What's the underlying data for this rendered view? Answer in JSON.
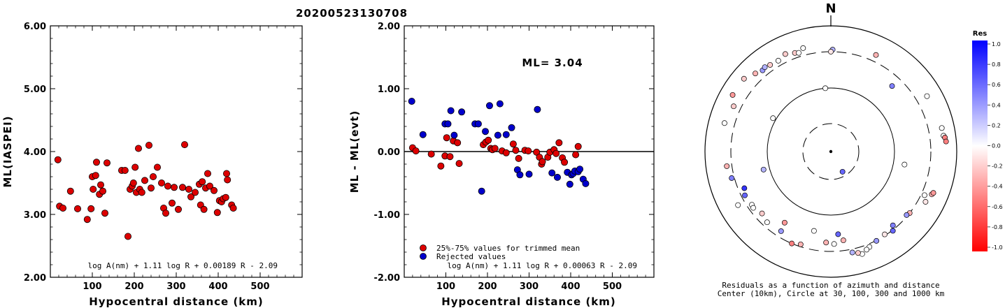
{
  "event_title": "20200523130708",
  "chart_data": [
    {
      "type": "scatter",
      "ylabel": "ML(IASPEI)",
      "xlabel": "Hypocentral distance (km)",
      "xlim": [
        0,
        600
      ],
      "ylim": [
        2.0,
        6.0
      ],
      "xticks": [
        "100",
        "200",
        "300",
        "400",
        "500"
      ],
      "yticks": [
        "2.00",
        "3.00",
        "4.00",
        "5.00",
        "6.00"
      ],
      "formula": "log A(nm) + 1.11 log R + 0.00189 R - 2.09",
      "color": "#dd0000",
      "points": [
        [
          18,
          3.87
        ],
        [
          22,
          3.13
        ],
        [
          30,
          3.1
        ],
        [
          48,
          3.37
        ],
        [
          65,
          3.09
        ],
        [
          88,
          2.92
        ],
        [
          97,
          3.09
        ],
        [
          100,
          3.6
        ],
        [
          102,
          3.4
        ],
        [
          108,
          3.62
        ],
        [
          110,
          3.83
        ],
        [
          117,
          3.32
        ],
        [
          120,
          3.47
        ],
        [
          125,
          3.37
        ],
        [
          130,
          3.02
        ],
        [
          135,
          3.82
        ],
        [
          170,
          3.7
        ],
        [
          178,
          3.7
        ],
        [
          185,
          2.65
        ],
        [
          190,
          3.4
        ],
        [
          195,
          3.45
        ],
        [
          198,
          3.5
        ],
        [
          202,
          3.75
        ],
        [
          205,
          3.35
        ],
        [
          210,
          4.05
        ],
        [
          213,
          3.4
        ],
        [
          218,
          3.35
        ],
        [
          225,
          3.54
        ],
        [
          235,
          4.1
        ],
        [
          240,
          3.42
        ],
        [
          245,
          3.6
        ],
        [
          255,
          3.75
        ],
        [
          265,
          3.5
        ],
        [
          270,
          3.1
        ],
        [
          275,
          3.02
        ],
        [
          280,
          3.45
        ],
        [
          290,
          3.18
        ],
        [
          295,
          3.43
        ],
        [
          305,
          3.08
        ],
        [
          315,
          3.43
        ],
        [
          320,
          4.11
        ],
        [
          330,
          3.4
        ],
        [
          335,
          3.28
        ],
        [
          345,
          3.35
        ],
        [
          355,
          3.48
        ],
        [
          358,
          3.15
        ],
        [
          362,
          3.52
        ],
        [
          366,
          3.08
        ],
        [
          370,
          3.42
        ],
        [
          375,
          3.65
        ],
        [
          380,
          3.45
        ],
        [
          390,
          3.38
        ],
        [
          398,
          3.03
        ],
        [
          403,
          3.22
        ],
        [
          408,
          3.2
        ],
        [
          412,
          3.25
        ],
        [
          418,
          3.27
        ],
        [
          420,
          3.65
        ],
        [
          422,
          3.55
        ],
        [
          432,
          3.15
        ],
        [
          436,
          3.1
        ]
      ]
    },
    {
      "type": "scatter",
      "ylabel": "ML - ML(evt)",
      "xlabel": "Hypocentral distance (km)",
      "xlim": [
        0,
        600
      ],
      "ylim": [
        -2.0,
        2.0
      ],
      "xticks": [
        "100",
        "200",
        "300",
        "400",
        "500"
      ],
      "yticks": [
        "-2.00",
        "-1.00",
        "0.00",
        "1.00",
        "2.00"
      ],
      "annotation": "ML= 3.04",
      "formula": "log A(nm) + 1.11 log R + 0.00063 R - 2.09",
      "legend": [
        "25%-75% values for trimmed mean",
        "Rejected values"
      ],
      "series": [
        {
          "name": "25%-75% values for trimmed mean",
          "color": "#dd0000",
          "points": [
            [
              20,
              0.06
            ],
            [
              28,
              0.01
            ],
            [
              65,
              -0.04
            ],
            [
              88,
              -0.23
            ],
            [
              98,
              -0.07
            ],
            [
              102,
              0.22
            ],
            [
              110,
              -0.08
            ],
            [
              118,
              0.17
            ],
            [
              128,
              0.14
            ],
            [
              132,
              -0.19
            ],
            [
              190,
              0.11
            ],
            [
              196,
              0.15
            ],
            [
              202,
              0.18
            ],
            [
              208,
              0.05
            ],
            [
              212,
              0.03
            ],
            [
              218,
              0.05
            ],
            [
              235,
              0.01
            ],
            [
              245,
              -0.02
            ],
            [
              262,
              0.12
            ],
            [
              268,
              0.02
            ],
            [
              275,
              -0.11
            ],
            [
              290,
              0.02
            ],
            [
              298,
              0.01
            ],
            [
              318,
              -0.01
            ],
            [
              325,
              -0.09
            ],
            [
              330,
              -0.2
            ],
            [
              332,
              -0.16
            ],
            [
              345,
              -0.09
            ],
            [
              350,
              -0.01
            ],
            [
              360,
              0.03
            ],
            [
              365,
              -0.03
            ],
            [
              372,
              0.14
            ],
            [
              380,
              -0.1
            ],
            [
              385,
              -0.17
            ],
            [
              412,
              -0.05
            ],
            [
              418,
              0.08
            ]
          ]
        },
        {
          "name": "Rejected values",
          "color": "#0000cc",
          "points": [
            [
              18,
              0.8
            ],
            [
              45,
              0.27
            ],
            [
              98,
              0.44
            ],
            [
              105,
              0.44
            ],
            [
              112,
              0.65
            ],
            [
              120,
              0.26
            ],
            [
              138,
              0.63
            ],
            [
              170,
              0.44
            ],
            [
              178,
              0.44
            ],
            [
              186,
              -0.63
            ],
            [
              195,
              0.32
            ],
            [
              205,
              0.73
            ],
            [
              225,
              0.26
            ],
            [
              230,
              0.76
            ],
            [
              245,
              0.27
            ],
            [
              258,
              0.38
            ],
            [
              272,
              -0.29
            ],
            [
              278,
              -0.37
            ],
            [
              300,
              -0.36
            ],
            [
              320,
              0.67
            ],
            [
              355,
              -0.34
            ],
            [
              368,
              -0.41
            ],
            [
              392,
              -0.33
            ],
            [
              398,
              -0.52
            ],
            [
              402,
              -0.37
            ],
            [
              406,
              -0.35
            ],
            [
              410,
              -0.31
            ],
            [
              418,
              -0.32
            ],
            [
              422,
              -0.28
            ],
            [
              430,
              -0.44
            ],
            [
              436,
              -0.51
            ]
          ]
        }
      ]
    },
    {
      "type": "polar-scatter",
      "north_label": "N",
      "caption_line1": "Residuals as a function of azimuth and distance",
      "caption_line2": "Center (10km), Circle at 30, 100, 300 and 1000 km",
      "colorbar_title": "Res",
      "colorbar_ticks": [
        "1.0",
        "0.8",
        "0.6",
        "0.4",
        "0.2",
        "0.0",
        "-0.2",
        "-0.4",
        "-0.6",
        "-0.8",
        "-1.0"
      ],
      "rings_km": [
        30,
        100,
        300,
        1000
      ],
      "stations": [
        {
          "az": 345,
          "dist": 420,
          "res": 0.0
        },
        {
          "az": 335,
          "dist": 430,
          "res": -0.2
        },
        {
          "az": 340,
          "dist": 380,
          "res": -0.2
        },
        {
          "az": 342,
          "dist": 360,
          "res": 0.0
        },
        {
          "az": 330,
          "dist": 380,
          "res": 0.0
        },
        {
          "az": 325,
          "dist": 395,
          "res": -0.2
        },
        {
          "az": 320,
          "dist": 400,
          "res": 0.4
        },
        {
          "az": 322,
          "dist": 420,
          "res": 0.3
        },
        {
          "az": 316,
          "dist": 450,
          "res": -0.3
        },
        {
          "az": 310,
          "dist": 560,
          "res": -0.2
        },
        {
          "az": 300,
          "dist": 560,
          "res": -0.4
        },
        {
          "az": 295,
          "dist": 420,
          "res": -0.2
        },
        {
          "az": 285,
          "dist": 480,
          "res": 0.0
        },
        {
          "az": 355,
          "dist": 100,
          "res": 0.0
        },
        {
          "az": 25,
          "dist": 410,
          "res": -0.3
        },
        {
          "az": 1,
          "dist": 330,
          "res": 0.3
        },
        {
          "az": 0,
          "dist": 300,
          "res": -0.1
        },
        {
          "az": 43,
          "dist": 220,
          "res": 0.5
        },
        {
          "az": 60,
          "dist": 500,
          "res": 0.0
        },
        {
          "az": 78,
          "dist": 560,
          "res": 0.0
        },
        {
          "az": 82,
          "dist": 570,
          "res": 0.0
        },
        {
          "az": 83,
          "dist": 600,
          "res": -0.5
        },
        {
          "az": 85,
          "dist": 620,
          "res": -0.5
        },
        {
          "az": 100,
          "dist": 140,
          "res": 0.0
        },
        {
          "az": 150,
          "dist": 25,
          "res": 0.6
        },
        {
          "az": 300,
          "dist": 110,
          "res": 0.0
        },
        {
          "az": 255,
          "dist": 120,
          "res": 0.3
        },
        {
          "az": 115,
          "dist": 350,
          "res": 0.0
        },
        {
          "az": 113,
          "dist": 470,
          "res": -0.3
        },
        {
          "az": 112,
          "dist": 490,
          "res": -0.4
        },
        {
          "az": 118,
          "dist": 420,
          "res": -0.1
        },
        {
          "az": 128,
          "dist": 300,
          "res": -0.3
        },
        {
          "az": 130,
          "dist": 290,
          "res": 0.4
        },
        {
          "az": 140,
          "dist": 270,
          "res": 0.5
        },
        {
          "az": 142,
          "dist": 310,
          "res": 0.6
        },
        {
          "az": 147,
          "dist": 290,
          "res": -0.1
        },
        {
          "az": 153,
          "dist": 305,
          "res": 0.4
        },
        {
          "az": 158,
          "dist": 345,
          "res": 0.0
        },
        {
          "az": 160,
          "dist": 370,
          "res": 0.0
        },
        {
          "az": 163,
          "dist": 420,
          "res": 0.0
        },
        {
          "az": 165,
          "dist": 380,
          "res": -0.2
        },
        {
          "az": 168,
          "dist": 350,
          "res": 0.3
        },
        {
          "az": 172,
          "dist": 220,
          "res": -0.3
        },
        {
          "az": 178,
          "dist": 240,
          "res": 0.0
        },
        {
          "az": 183,
          "dist": 230,
          "res": -0.3
        },
        {
          "az": 175,
          "dist": 180,
          "res": 0.6
        },
        {
          "az": 192,
          "dist": 170,
          "res": 0.0
        },
        {
          "az": 198,
          "dist": 280,
          "res": -0.3
        },
        {
          "az": 203,
          "dist": 300,
          "res": -0.5
        },
        {
          "az": 213,
          "dist": 190,
          "res": -0.4
        },
        {
          "az": 212,
          "dist": 250,
          "res": 0.4
        },
        {
          "az": 222,
          "dist": 260,
          "res": 0.0
        },
        {
          "az": 228,
          "dist": 240,
          "res": -0.2
        },
        {
          "az": 236,
          "dist": 260,
          "res": 0.0
        },
        {
          "az": 234,
          "dist": 265,
          "res": 0.0
        },
        {
          "az": 243,
          "dist": 270,
          "res": 0.6
        },
        {
          "az": 247,
          "dist": 250,
          "res": 0.8
        },
        {
          "az": 255,
          "dist": 340,
          "res": 0.5
        },
        {
          "az": 262,
          "dist": 380,
          "res": -0.3
        },
        {
          "az": 240,
          "dist": 420,
          "res": 0.0
        }
      ]
    }
  ]
}
